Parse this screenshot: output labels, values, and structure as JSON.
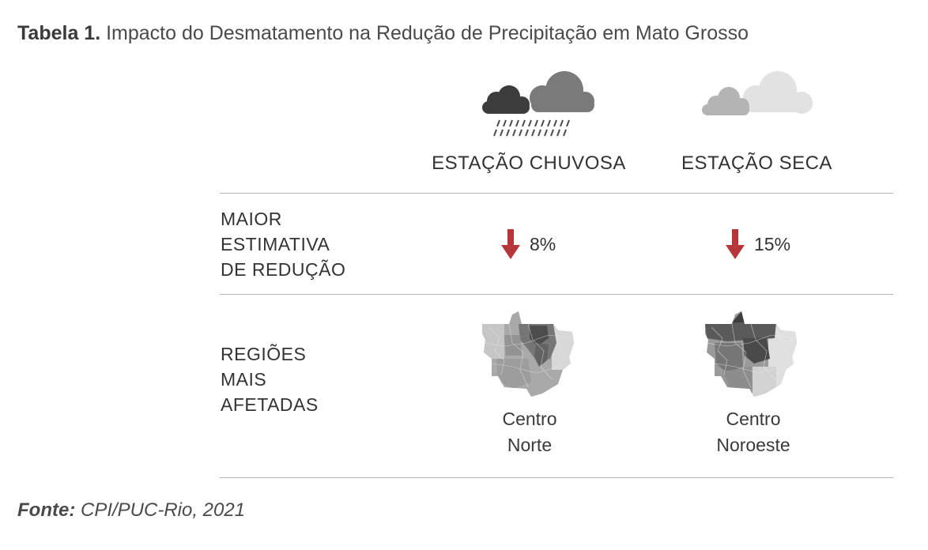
{
  "title": {
    "lead": "Tabela 1.",
    "text": "Impacto do Desmatamento na Redução de Precipitação em Mato Grosso"
  },
  "columns": {
    "rainy": {
      "label": "ESTAÇÃO CHUVOSA",
      "icon": "rain-cloud-icon"
    },
    "dry": {
      "label": "ESTAÇÃO SECA",
      "icon": "light-cloud-icon"
    }
  },
  "rows": {
    "estimate": {
      "label_lines": [
        "MAIOR",
        "ESTIMATIVA",
        "DE REDUÇÃO"
      ],
      "rainy_value": "8%",
      "dry_value": "15%",
      "arrow_icon": "down-arrow-icon"
    },
    "regions": {
      "label_lines": [
        "REGIÕES",
        "MAIS",
        "AFETADAS"
      ],
      "rainy": {
        "lines": [
          "Centro",
          "Norte"
        ],
        "icon": "mato-grosso-map-icon"
      },
      "dry": {
        "lines": [
          "Centro",
          "Noroeste"
        ],
        "icon": "mato-grosso-map-icon"
      }
    }
  },
  "source": {
    "lead": "Fonte:",
    "text": "CPI/PUC-Rio, 2021"
  },
  "colors": {
    "arrow": "#b7363a",
    "rule": "#b5b5b5",
    "text": "#333333"
  }
}
